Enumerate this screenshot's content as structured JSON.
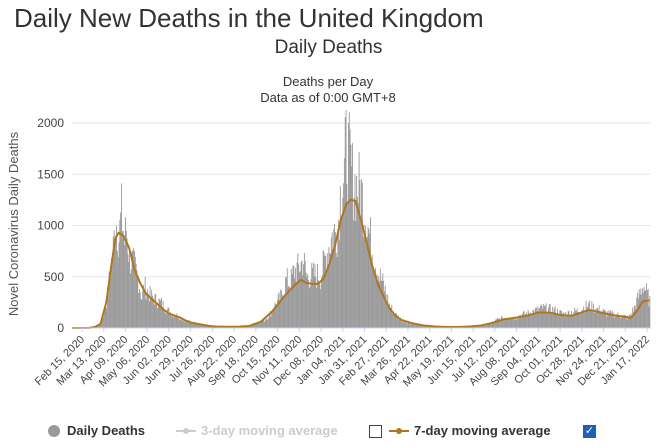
{
  "page": {
    "title": "Daily New Deaths in the United Kingdom",
    "section_title": "Daily Deaths"
  },
  "legend": {
    "items": [
      {
        "label": "Daily Deaths",
        "color": "#999999",
        "active": true
      },
      {
        "label": "3-day moving average",
        "color": "#cccccc",
        "active": false,
        "checked": false
      },
      {
        "label": "7-day moving average",
        "color": "#b0761f",
        "active": true,
        "checked": true
      }
    ]
  },
  "chart_data": {
    "type": "bar",
    "title": "Deaths per Day",
    "subtitle": "Data as of 0:00 GMT+8",
    "ylabel": "Novel Coronavirus Daily Deaths",
    "xlabel": "",
    "ylim": [
      0,
      2000
    ],
    "yticks": [
      0,
      500,
      1000,
      1500,
      2000
    ],
    "grid": true,
    "x_tick_labels": [
      "Feb 15, 2020",
      "Mar 13, 2020",
      "Apr 09, 2020",
      "May 06, 2020",
      "Jun 02, 2020",
      "Jun 29, 2020",
      "Jul 26, 2020",
      "Aug 22, 2020",
      "Sep 18, 2020",
      "Oct 15, 2020",
      "Nov 11, 2020",
      "Dec 08, 2020",
      "Jan 04, 2021",
      "Jan 31, 2021",
      "Feb 27, 2021",
      "Mar 26, 2021",
      "Apr 22, 2021",
      "May 19, 2021",
      "Jun 15, 2021",
      "Jul 12, 2021",
      "Aug 08, 2021",
      "Sep 04, 2021",
      "Oct 01, 2021",
      "Oct 28, 2021",
      "Nov 24, 2021",
      "Dec 21, 2021",
      "Jan 17, 2022"
    ],
    "series": [
      {
        "name": "Daily Deaths",
        "type": "bar",
        "color": "#999999",
        "points": [
          [
            "2020-02-15",
            0
          ],
          [
            "2020-03-07",
            1
          ],
          [
            "2020-03-14",
            10
          ],
          [
            "2020-03-21",
            40
          ],
          [
            "2020-03-28",
            260
          ],
          [
            "2020-04-02",
            600
          ],
          [
            "2020-04-05",
            800
          ],
          [
            "2020-04-08",
            1100
          ],
          [
            "2020-04-10",
            1000
          ],
          [
            "2020-04-12",
            900
          ],
          [
            "2020-04-15",
            1150
          ],
          [
            "2020-04-19",
            860
          ],
          [
            "2020-04-21",
            1000
          ],
          [
            "2020-04-25",
            700
          ],
          [
            "2020-04-29",
            650
          ],
          [
            "2020-05-01",
            620
          ],
          [
            "2020-05-06",
            480
          ],
          [
            "2020-05-10",
            300
          ],
          [
            "2020-05-13",
            420
          ],
          [
            "2020-05-20",
            330
          ],
          [
            "2020-05-27",
            280
          ],
          [
            "2020-06-03",
            250
          ],
          [
            "2020-06-10",
            180
          ],
          [
            "2020-06-17",
            140
          ],
          [
            "2020-06-24",
            120
          ],
          [
            "2020-07-01",
            80
          ],
          [
            "2020-07-08",
            60
          ],
          [
            "2020-07-15",
            50
          ],
          [
            "2020-07-22",
            40
          ],
          [
            "2020-07-29",
            30
          ],
          [
            "2020-08-05",
            20
          ],
          [
            "2020-08-12",
            15
          ],
          [
            "2020-08-19",
            12
          ],
          [
            "2020-08-26",
            10
          ],
          [
            "2020-09-02",
            10
          ],
          [
            "2020-09-09",
            12
          ],
          [
            "2020-09-16",
            20
          ],
          [
            "2020-09-23",
            35
          ],
          [
            "2020-09-30",
            60
          ],
          [
            "2020-10-07",
            80
          ],
          [
            "2020-10-14",
            140
          ],
          [
            "2020-10-21",
            240
          ],
          [
            "2020-10-28",
            320
          ],
          [
            "2020-11-03",
            480
          ],
          [
            "2020-11-08",
            450
          ],
          [
            "2020-11-12",
            560
          ],
          [
            "2020-11-18",
            600
          ],
          [
            "2020-11-24",
            680
          ],
          [
            "2020-11-28",
            500
          ],
          [
            "2020-12-01",
            520
          ],
          [
            "2020-12-08",
            530
          ],
          [
            "2020-12-15",
            520
          ],
          [
            "2020-12-22",
            740
          ],
          [
            "2020-12-29",
            920
          ],
          [
            "2021-01-05",
            1000
          ],
          [
            "2021-01-08",
            1330
          ],
          [
            "2021-01-13",
            1550
          ],
          [
            "2021-01-15",
            1800
          ],
          [
            "2021-01-17",
            1750
          ],
          [
            "2021-01-20",
            1660
          ],
          [
            "2021-01-23",
            1500
          ],
          [
            "2021-01-27",
            1420
          ],
          [
            "2021-02-02",
            1400
          ],
          [
            "2021-02-06",
            1200
          ],
          [
            "2021-02-09",
            1100
          ],
          [
            "2021-02-16",
            800
          ],
          [
            "2021-02-23",
            560
          ],
          [
            "2021-03-02",
            430
          ],
          [
            "2021-03-09",
            230
          ],
          [
            "2021-03-16",
            140
          ],
          [
            "2021-03-23",
            90
          ],
          [
            "2021-03-30",
            60
          ],
          [
            "2021-04-06",
            40
          ],
          [
            "2021-04-20",
            25
          ],
          [
            "2021-05-05",
            15
          ],
          [
            "2021-05-20",
            10
          ],
          [
            "2021-06-05",
            10
          ],
          [
            "2021-06-20",
            15
          ],
          [
            "2021-07-05",
            30
          ],
          [
            "2021-07-12",
            50
          ],
          [
            "2021-07-19",
            80
          ],
          [
            "2021-07-26",
            100
          ],
          [
            "2021-08-02",
            110
          ],
          [
            "2021-08-09",
            100
          ],
          [
            "2021-08-16",
            130
          ],
          [
            "2021-08-23",
            140
          ],
          [
            "2021-08-30",
            160
          ],
          [
            "2021-09-06",
            180
          ],
          [
            "2021-09-13",
            200
          ],
          [
            "2021-09-20",
            190
          ],
          [
            "2021-09-27",
            180
          ],
          [
            "2021-10-04",
            150
          ],
          [
            "2021-10-11",
            140
          ],
          [
            "2021-10-18",
            160
          ],
          [
            "2021-10-25",
            170
          ],
          [
            "2021-11-01",
            200
          ],
          [
            "2021-11-08",
            230
          ],
          [
            "2021-11-15",
            200
          ],
          [
            "2021-11-22",
            180
          ],
          [
            "2021-11-29",
            150
          ],
          [
            "2021-12-06",
            140
          ],
          [
            "2021-12-13",
            130
          ],
          [
            "2021-12-20",
            120
          ],
          [
            "2021-12-27",
            100
          ],
          [
            "2022-01-03",
            200
          ],
          [
            "2022-01-10",
            350
          ],
          [
            "2022-01-14",
            430
          ],
          [
            "2022-01-17",
            380
          ],
          [
            "2022-01-22",
            270
          ]
        ]
      },
      {
        "name": "7-day moving average",
        "type": "line",
        "color": "#b0761f",
        "points": [
          [
            "2020-02-15",
            0
          ],
          [
            "2020-03-07",
            1
          ],
          [
            "2020-03-14",
            10
          ],
          [
            "2020-03-21",
            40
          ],
          [
            "2020-03-28",
            250
          ],
          [
            "2020-04-03",
            600
          ],
          [
            "2020-04-08",
            870
          ],
          [
            "2020-04-12",
            930
          ],
          [
            "2020-04-18",
            900
          ],
          [
            "2020-04-25",
            780
          ],
          [
            "2020-05-02",
            560
          ],
          [
            "2020-05-09",
            430
          ],
          [
            "2020-05-16",
            330
          ],
          [
            "2020-05-23",
            280
          ],
          [
            "2020-05-30",
            230
          ],
          [
            "2020-06-06",
            180
          ],
          [
            "2020-06-13",
            140
          ],
          [
            "2020-06-20",
            120
          ],
          [
            "2020-06-27",
            100
          ],
          [
            "2020-07-04",
            70
          ],
          [
            "2020-07-11",
            50
          ],
          [
            "2020-07-18",
            40
          ],
          [
            "2020-07-25",
            30
          ],
          [
            "2020-08-01",
            20
          ],
          [
            "2020-08-08",
            15
          ],
          [
            "2020-08-22",
            12
          ],
          [
            "2020-09-05",
            12
          ],
          [
            "2020-09-19",
            20
          ],
          [
            "2020-10-03",
            60
          ],
          [
            "2020-10-17",
            160
          ],
          [
            "2020-10-31",
            300
          ],
          [
            "2020-11-14",
            420
          ],
          [
            "2020-11-21",
            470
          ],
          [
            "2020-11-28",
            440
          ],
          [
            "2020-12-05",
            430
          ],
          [
            "2020-12-12",
            430
          ],
          [
            "2020-12-19",
            480
          ],
          [
            "2020-12-26",
            620
          ],
          [
            "2021-01-02",
            800
          ],
          [
            "2021-01-09",
            1050
          ],
          [
            "2021-01-16",
            1210
          ],
          [
            "2021-01-21",
            1250
          ],
          [
            "2021-01-27",
            1240
          ],
          [
            "2021-02-03",
            1050
          ],
          [
            "2021-02-10",
            830
          ],
          [
            "2021-02-17",
            600
          ],
          [
            "2021-02-24",
            420
          ],
          [
            "2021-03-03",
            300
          ],
          [
            "2021-03-10",
            190
          ],
          [
            "2021-03-17",
            120
          ],
          [
            "2021-03-24",
            80
          ],
          [
            "2021-04-07",
            45
          ],
          [
            "2021-04-21",
            25
          ],
          [
            "2021-05-05",
            15
          ],
          [
            "2021-05-19",
            10
          ],
          [
            "2021-06-02",
            10
          ],
          [
            "2021-06-16",
            15
          ],
          [
            "2021-06-30",
            25
          ],
          [
            "2021-07-14",
            50
          ],
          [
            "2021-07-28",
            85
          ],
          [
            "2021-08-11",
            100
          ],
          [
            "2021-08-25",
            120
          ],
          [
            "2021-09-08",
            150
          ],
          [
            "2021-09-22",
            150
          ],
          [
            "2021-10-06",
            125
          ],
          [
            "2021-10-20",
            120
          ],
          [
            "2021-11-03",
            160
          ],
          [
            "2021-11-10",
            175
          ],
          [
            "2021-11-24",
            150
          ],
          [
            "2021-12-08",
            125
          ],
          [
            "2021-12-22",
            110
          ],
          [
            "2021-12-31",
            100
          ],
          [
            "2022-01-07",
            170
          ],
          [
            "2022-01-14",
            260
          ],
          [
            "2022-01-22",
            270
          ]
        ]
      }
    ]
  }
}
